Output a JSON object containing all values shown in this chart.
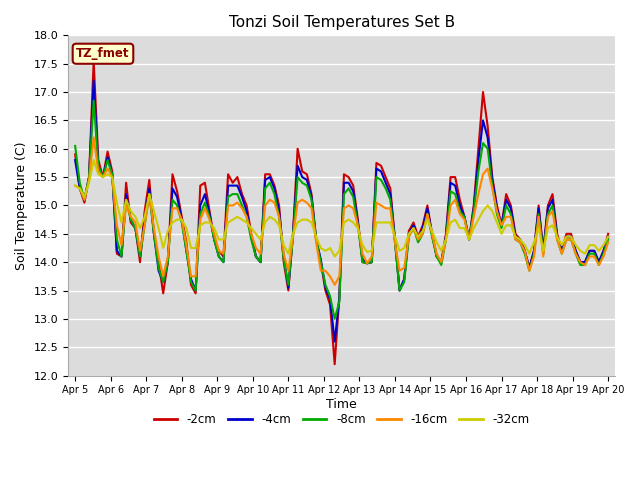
{
  "title": "Tonzi Soil Temperatures Set B",
  "xlabel": "Time",
  "ylabel": "Soil Temperature (C)",
  "ylim": [
    12.0,
    18.0
  ],
  "yticks": [
    12.0,
    12.5,
    13.0,
    13.5,
    14.0,
    14.5,
    15.0,
    15.5,
    16.0,
    16.5,
    17.0,
    17.5,
    18.0
  ],
  "bg_color": "#dcdcdc",
  "annotation_text": "TZ_fmet",
  "annotation_color": "#8b0000",
  "annotation_bg": "#ffffcc",
  "series_colors": [
    "#cc0000",
    "#0000cc",
    "#00aa00",
    "#ff8800",
    "#cccc00"
  ],
  "series_labels": [
    "-2cm",
    "-4cm",
    "-8cm",
    "-16cm",
    "-32cm"
  ],
  "line_width": 1.5,
  "xtick_labels": [
    "Apr 5",
    "Apr 6",
    "Apr 7",
    "Apr 8",
    "Apr 9",
    "Apr 10",
    "Apr 11",
    "Apr 12",
    "Apr 13",
    "Apr 14",
    "Apr 15",
    "Apr 16",
    "Apr 17",
    "Apr 18",
    "Apr 19",
    "Apr 20"
  ],
  "series_2cm": [
    15.9,
    15.3,
    15.05,
    15.5,
    17.55,
    15.8,
    15.5,
    15.95,
    15.6,
    14.15,
    14.1,
    15.4,
    14.7,
    14.6,
    14.0,
    14.9,
    15.45,
    14.5,
    14.0,
    13.45,
    14.0,
    15.55,
    15.25,
    14.8,
    14.35,
    13.6,
    13.45,
    15.35,
    15.4,
    14.9,
    14.4,
    14.2,
    14.1,
    15.55,
    15.4,
    15.5,
    15.2,
    15.0,
    14.5,
    14.1,
    14.0,
    15.55,
    15.55,
    15.35,
    15.0,
    14.0,
    13.5,
    14.5,
    16.0,
    15.6,
    15.55,
    15.2,
    14.4,
    14.0,
    13.5,
    13.25,
    12.2,
    13.4,
    15.55,
    15.5,
    15.35,
    14.75,
    14.0,
    13.98,
    14.0,
    15.75,
    15.7,
    15.5,
    15.3,
    14.4,
    13.5,
    13.7,
    14.55,
    14.7,
    14.45,
    14.65,
    15.0,
    14.5,
    14.1,
    14.0,
    14.5,
    15.5,
    15.5,
    15.1,
    14.8,
    14.4,
    15.0,
    16.0,
    17.0,
    16.4,
    15.5,
    15.0,
    14.65,
    15.2,
    15.0,
    14.5,
    14.4,
    14.2,
    13.9,
    14.2,
    15.0,
    14.2,
    15.0,
    15.2,
    14.5,
    14.2,
    14.5,
    14.5,
    14.2,
    14.0,
    14.0,
    14.2,
    14.2,
    14.0,
    14.2,
    14.5
  ],
  "series_4cm": [
    15.8,
    15.3,
    15.1,
    15.5,
    17.2,
    15.7,
    15.5,
    15.85,
    15.55,
    14.2,
    14.1,
    15.2,
    14.75,
    14.6,
    14.1,
    14.75,
    15.3,
    14.5,
    13.85,
    13.65,
    14.0,
    15.3,
    15.15,
    14.75,
    14.2,
    13.7,
    13.5,
    15.0,
    15.2,
    14.85,
    14.4,
    14.1,
    14.0,
    15.35,
    15.35,
    15.35,
    15.15,
    14.9,
    14.45,
    14.1,
    14.0,
    15.45,
    15.5,
    15.3,
    14.9,
    14.1,
    13.55,
    14.5,
    15.7,
    15.5,
    15.45,
    15.15,
    14.4,
    14.05,
    13.55,
    13.35,
    12.6,
    13.35,
    15.4,
    15.4,
    15.25,
    14.7,
    14.05,
    13.98,
    14.0,
    15.65,
    15.6,
    15.4,
    15.2,
    14.4,
    13.5,
    13.7,
    14.5,
    14.65,
    14.4,
    14.6,
    14.95,
    14.5,
    14.1,
    14.0,
    14.45,
    15.4,
    15.35,
    15.0,
    14.8,
    14.4,
    14.95,
    15.8,
    16.5,
    16.2,
    15.45,
    14.95,
    14.65,
    15.1,
    14.95,
    14.45,
    14.4,
    14.2,
    13.9,
    14.2,
    14.95,
    14.2,
    14.95,
    15.1,
    14.45,
    14.2,
    14.45,
    14.45,
    14.2,
    14.0,
    14.0,
    14.2,
    14.2,
    14.0,
    14.2,
    14.45
  ],
  "series_8cm": [
    16.05,
    15.4,
    15.1,
    15.5,
    16.85,
    15.7,
    15.5,
    15.8,
    15.55,
    14.4,
    14.1,
    15.1,
    14.75,
    14.6,
    14.1,
    14.65,
    15.2,
    14.5,
    13.9,
    13.65,
    14.0,
    15.1,
    15.0,
    14.7,
    14.2,
    13.65,
    13.5,
    14.85,
    15.05,
    14.8,
    14.4,
    14.1,
    14.0,
    15.15,
    15.2,
    15.2,
    15.0,
    14.8,
    14.4,
    14.1,
    14.0,
    15.3,
    15.4,
    15.2,
    14.8,
    14.05,
    13.6,
    14.45,
    15.5,
    15.4,
    15.35,
    15.1,
    14.4,
    14.0,
    13.6,
    13.4,
    13.0,
    13.3,
    15.2,
    15.3,
    15.15,
    14.65,
    14.0,
    13.98,
    14.0,
    15.5,
    15.45,
    15.3,
    15.1,
    14.35,
    13.5,
    13.65,
    14.45,
    14.6,
    14.35,
    14.5,
    14.85,
    14.45,
    14.1,
    13.95,
    14.4,
    15.25,
    15.2,
    14.9,
    14.8,
    14.4,
    14.9,
    15.6,
    16.1,
    16.0,
    15.35,
    14.85,
    14.6,
    15.0,
    14.85,
    14.4,
    14.35,
    14.15,
    13.85,
    14.15,
    14.85,
    14.15,
    14.85,
    15.0,
    14.4,
    14.15,
    14.4,
    14.4,
    14.15,
    13.95,
    13.95,
    14.15,
    14.15,
    13.95,
    14.15,
    14.4
  ],
  "series_16cm": [
    15.35,
    15.3,
    15.1,
    15.45,
    16.2,
    15.6,
    15.5,
    15.65,
    15.5,
    14.65,
    14.3,
    15.0,
    14.8,
    14.7,
    14.2,
    14.65,
    15.2,
    14.6,
    14.1,
    13.75,
    14.1,
    14.95,
    14.95,
    14.75,
    14.3,
    13.75,
    13.75,
    14.75,
    14.95,
    14.75,
    14.5,
    14.2,
    14.15,
    15.0,
    15.0,
    15.05,
    14.95,
    14.8,
    14.5,
    14.25,
    14.15,
    15.0,
    15.1,
    15.05,
    14.8,
    14.15,
    13.85,
    14.45,
    15.05,
    15.1,
    15.05,
    14.95,
    14.35,
    13.85,
    13.85,
    13.75,
    13.6,
    13.75,
    14.95,
    15.0,
    14.95,
    14.65,
    14.15,
    13.98,
    14.1,
    15.05,
    15.0,
    14.95,
    14.95,
    14.35,
    13.85,
    13.9,
    14.45,
    14.6,
    14.4,
    14.5,
    14.85,
    14.5,
    14.15,
    14.0,
    14.4,
    15.0,
    15.1,
    14.85,
    14.75,
    14.4,
    14.8,
    15.2,
    15.55,
    15.65,
    15.3,
    14.9,
    14.65,
    14.8,
    14.8,
    14.4,
    14.35,
    14.2,
    13.85,
    14.1,
    14.8,
    14.1,
    14.8,
    14.9,
    14.4,
    14.15,
    14.4,
    14.4,
    14.15,
    14.0,
    13.95,
    14.1,
    14.1,
    13.95,
    14.1,
    14.35
  ],
  "series_32cm": [
    15.35,
    15.3,
    15.15,
    15.4,
    15.8,
    15.55,
    15.5,
    15.55,
    15.5,
    15.05,
    14.7,
    15.1,
    14.9,
    14.8,
    14.6,
    14.8,
    15.2,
    14.9,
    14.6,
    14.25,
    14.55,
    14.7,
    14.75,
    14.75,
    14.6,
    14.25,
    14.25,
    14.65,
    14.7,
    14.7,
    14.6,
    14.4,
    14.4,
    14.7,
    14.75,
    14.8,
    14.75,
    14.7,
    14.6,
    14.5,
    14.4,
    14.7,
    14.8,
    14.75,
    14.65,
    14.3,
    14.15,
    14.5,
    14.7,
    14.75,
    14.75,
    14.7,
    14.45,
    14.25,
    14.2,
    14.25,
    14.1,
    14.2,
    14.7,
    14.75,
    14.7,
    14.6,
    14.3,
    14.18,
    14.2,
    14.7,
    14.7,
    14.7,
    14.7,
    14.45,
    14.2,
    14.25,
    14.5,
    14.6,
    14.45,
    14.55,
    14.75,
    14.55,
    14.35,
    14.2,
    14.4,
    14.7,
    14.75,
    14.6,
    14.6,
    14.4,
    14.6,
    14.75,
    14.9,
    15.0,
    14.9,
    14.7,
    14.5,
    14.65,
    14.65,
    14.45,
    14.4,
    14.3,
    14.15,
    14.35,
    14.6,
    14.2,
    14.6,
    14.65,
    14.45,
    14.3,
    14.45,
    14.45,
    14.3,
    14.2,
    14.15,
    14.3,
    14.3,
    14.2,
    14.3,
    14.45
  ]
}
